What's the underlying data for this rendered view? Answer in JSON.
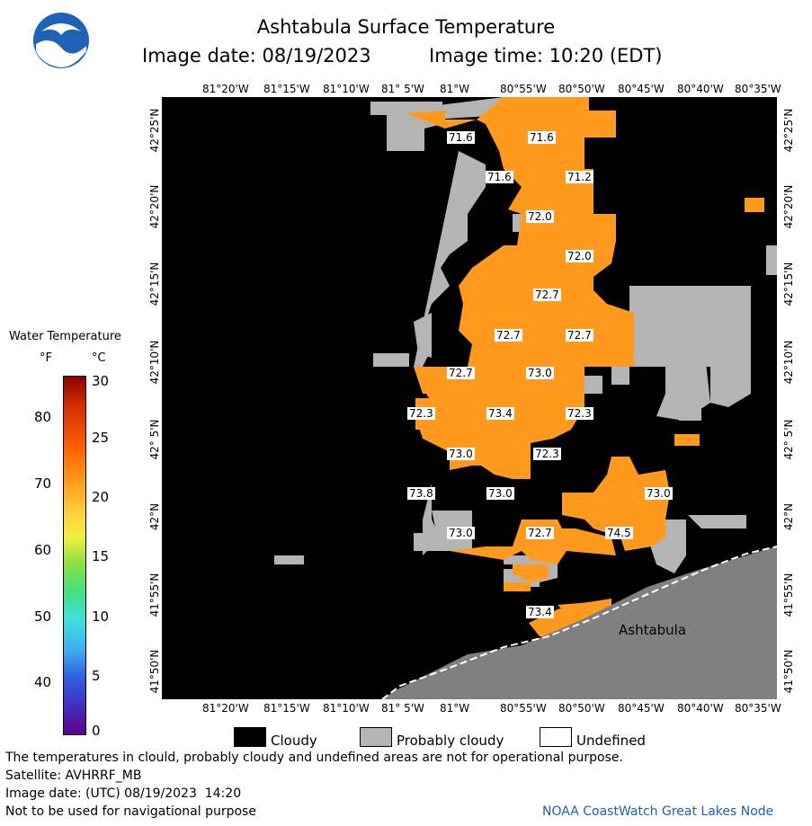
{
  "header": {
    "title": "Ashtabula Surface Temperature",
    "image_date": "Image date: 08/19/2023",
    "image_time": "Image time: 10:20 (EDT)"
  },
  "logo": {
    "text": "NOAA"
  },
  "map": {
    "lon_labels": [
      "81°20'W",
      "81°15'W",
      "81°10'W",
      "81° 5'W",
      "81°W",
      "80°55'W",
      "80°50'W",
      "80°45'W",
      "80°40'W",
      "80°35'W"
    ],
    "lat_labels": [
      "42°25'N",
      "42°20'N",
      "42°15'N",
      "42°10'N",
      "42° 5'N",
      "42°N",
      "41°55'N",
      "41°50'N"
    ],
    "place_label": "Ashtabula",
    "temperatures": [
      {
        "value": "71.6"
      },
      {
        "value": "71.6"
      },
      {
        "value": "71.6"
      },
      {
        "value": "71.2"
      },
      {
        "value": "72.0"
      },
      {
        "value": "72.0"
      },
      {
        "value": "72.7"
      },
      {
        "value": "72.7"
      },
      {
        "value": "72.7"
      },
      {
        "value": "72.7"
      },
      {
        "value": "73.0"
      },
      {
        "value": "72.3"
      },
      {
        "value": "73.4"
      },
      {
        "value": "72.3"
      },
      {
        "value": "73.0"
      },
      {
        "value": "72.3"
      },
      {
        "value": "73.8"
      },
      {
        "value": "73.0"
      },
      {
        "value": "73.0"
      },
      {
        "value": "73.0"
      },
      {
        "value": "72.7"
      },
      {
        "value": "74.5"
      },
      {
        "value": "73.4"
      }
    ],
    "colors": {
      "cloud": "#000000",
      "probably_cloud": "#b4b4b4",
      "land": "#808080",
      "water": "#ff9a1e"
    }
  },
  "colorbar": {
    "title": "Water Temperature",
    "unit_f": "°F",
    "unit_c": "°C",
    "f_ticks": [
      "80",
      "70",
      "60",
      "50",
      "40"
    ],
    "c_ticks": [
      "30",
      "25",
      "20",
      "15",
      "10",
      "5",
      "0"
    ]
  },
  "legend": {
    "cloudy": "Cloudy",
    "probably_cloudy": "Probably cloudy",
    "undefined": "Undefined"
  },
  "footer": {
    "disclaimer": "The temperatures in clould, probably cloudy and undefined areas are not for operational purpose.",
    "satellite": "Satellite: AVHRRF_MB",
    "utc_date": "Image date: (UTC) 08/19/2023  14:20",
    "nav_warning": "Not to be used for navigational purpose",
    "credit": "NOAA CoastWatch Great Lakes Node"
  }
}
